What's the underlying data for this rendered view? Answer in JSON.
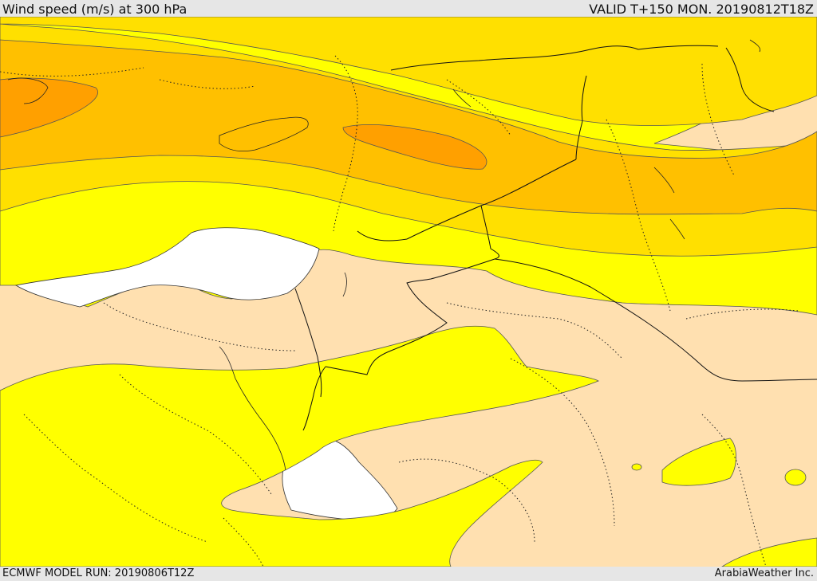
{
  "header": {
    "title": "Wind speed (m/s) at 300 hPa",
    "valid_time": "VALID T+150 MON. 20190812T18Z"
  },
  "footer": {
    "model_run": "ECMWF MODEL RUN: 20190806T12Z",
    "credit": "ArabiaWeather Inc."
  },
  "colors": {
    "calm": "#ffe0b0",
    "band_1": "#ffff00",
    "band_2": "#ffe000",
    "band_3": "#ffc000",
    "band_4": "#ffa000",
    "sea": "#ffffff",
    "contour": "#555555",
    "border": "#111111"
  }
}
